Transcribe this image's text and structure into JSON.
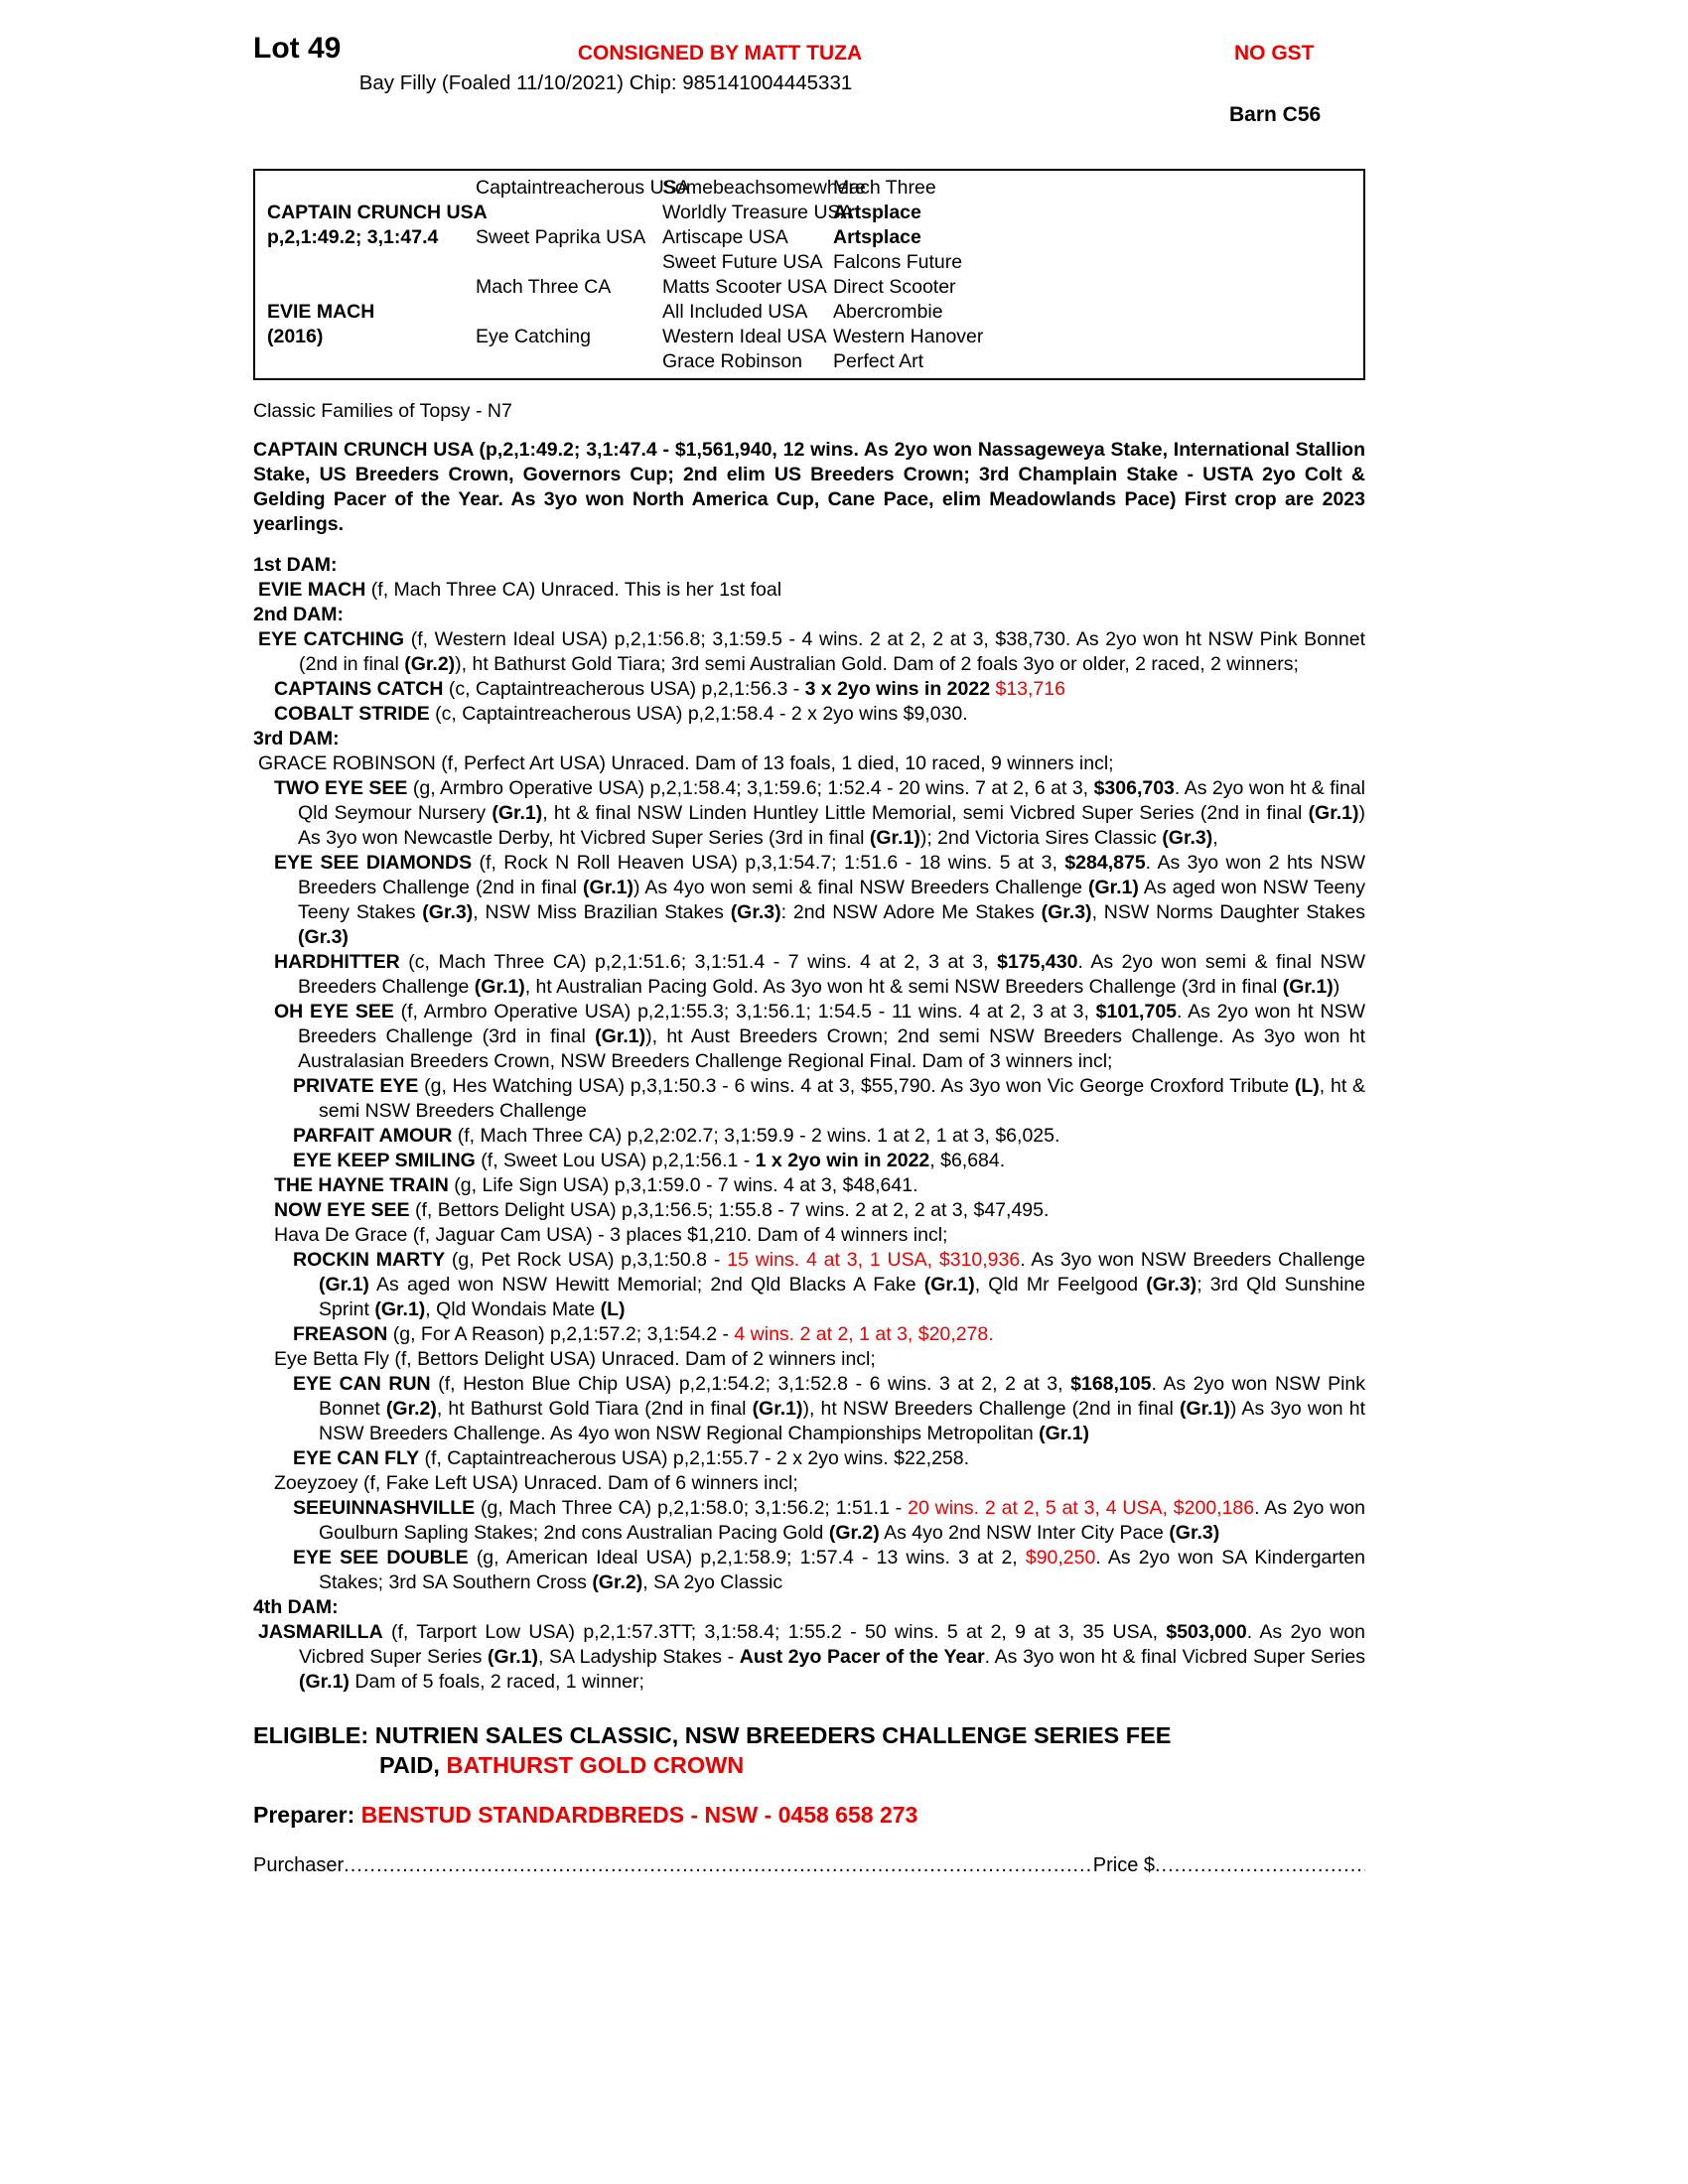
{
  "meta": {
    "accent_red": "#ee0000",
    "text_color": "#000000",
    "page_bg": "#ffffff"
  },
  "header": {
    "lot": "Lot 49",
    "consigned": "CONSIGNED BY MATT TUZA",
    "no_gst": "NO GST",
    "foal_info": "Bay Filly (Foaled 11/10/2021) Chip: 985141004445331",
    "barn": "Barn C56"
  },
  "pedigree": {
    "cells": [
      {
        "col": 1,
        "row": 2,
        "t": "CAPTAIN CRUNCH USA",
        "b": true
      },
      {
        "col": 1,
        "row": 3,
        "t": "p,2,1:49.2; 3,1:47.4",
        "b": true
      },
      {
        "col": 1,
        "row": 6,
        "t": "EVIE MACH",
        "b": true
      },
      {
        "col": 1,
        "row": 7,
        "t": "(2016)",
        "b": true
      },
      {
        "col": 2,
        "row": 1,
        "t": "Captaintreacherous USA"
      },
      {
        "col": 2,
        "row": 3,
        "t": "Sweet Paprika USA"
      },
      {
        "col": 2,
        "row": 5,
        "t": "Mach Three CA"
      },
      {
        "col": 2,
        "row": 7,
        "t": "Eye Catching"
      },
      {
        "col": 3,
        "row": 1,
        "t": "Somebeachsomewhere"
      },
      {
        "col": 3,
        "row": 2,
        "t": "Worldly Treasure USA"
      },
      {
        "col": 3,
        "row": 3,
        "t": "Artiscape USA"
      },
      {
        "col": 3,
        "row": 4,
        "t": "Sweet Future USA"
      },
      {
        "col": 3,
        "row": 5,
        "t": "Matts Scooter USA"
      },
      {
        "col": 3,
        "row": 6,
        "t": "All Included USA"
      },
      {
        "col": 3,
        "row": 7,
        "t": "Western Ideal USA"
      },
      {
        "col": 3,
        "row": 8,
        "t": "Grace Robinson"
      },
      {
        "col": 4,
        "row": 1,
        "t": "Mach Three"
      },
      {
        "col": 4,
        "row": 2,
        "t": "Artsplace",
        "b": true
      },
      {
        "col": 4,
        "row": 3,
        "t": "Artsplace",
        "b": true
      },
      {
        "col": 4,
        "row": 4,
        "t": "Falcons Future"
      },
      {
        "col": 4,
        "row": 5,
        "t": "Direct Scooter"
      },
      {
        "col": 4,
        "row": 6,
        "t": "Abercrombie"
      },
      {
        "col": 4,
        "row": 7,
        "t": "Western Hanover"
      },
      {
        "col": 4,
        "row": 8,
        "t": "Perfect Art"
      }
    ]
  },
  "body": [
    {
      "name": "family-line",
      "cls": "famline",
      "seg": [
        {
          "t": "Classic Families of Topsy - N7"
        }
      ]
    },
    {
      "name": "sire-paragraph",
      "cls": "sirepara justify",
      "seg": [
        {
          "t": "CAPTAIN CRUNCH USA (p,2,1:49.2; 3,1:47.4 - $1,561,940, 12 wins. As 2yo won Nassageweya Stake, International Stallion Stake, US Breeders Crown, Governors Cup; 2nd elim US Breeders Crown; 3rd Champlain Stake - USTA 2yo Colt & Gelding Pacer of the Year. As 3yo won North America Cup, Cane Pace, elim Meadowlands Pace) First crop are 2023 yearlings.",
          "b": true
        }
      ]
    },
    {
      "name": "dam1-label",
      "cls": "damlabel",
      "seg": [
        {
          "t": "1st DAM:",
          "b": true
        }
      ]
    },
    {
      "name": "entry-evie-mach",
      "cls": "lv0",
      "seg": [
        {
          "t": "EVIE MACH",
          "b": true
        },
        {
          "t": " (f, Mach Three CA) Unraced. This is her 1st foal"
        }
      ]
    },
    {
      "name": "dam2-label",
      "cls": "damlabel",
      "seg": [
        {
          "t": "2nd DAM:",
          "b": true
        }
      ]
    },
    {
      "name": "entry-eye-catching",
      "cls": "lv0 justify",
      "seg": [
        {
          "t": "EYE CATCHING",
          "b": true
        },
        {
          "t": " (f, Western Ideal USA) p,2,1:56.8; 3,1:59.5 - 4 wins. 2 at 2, 2 at 3, $38,730. As 2yo won ht NSW Pink Bonnet (2nd in final "
        },
        {
          "t": "(Gr.2)",
          "b": true
        },
        {
          "t": "), ht Bathurst Gold Tiara; 3rd semi Australian Gold. Dam of 2 foals 3yo or older, 2 raced, 2 winners;"
        }
      ]
    },
    {
      "name": "entry-captains-catch",
      "cls": "lv1",
      "seg": [
        {
          "t": "CAPTAINS CATCH",
          "b": true
        },
        {
          "t": " (c, Captaintreacherous USA) p,2,1:56.3 - "
        },
        {
          "t": "3 x 2yo wins in  2022",
          "b": true
        },
        {
          "t": " "
        },
        {
          "t": "$13,716",
          "r": true
        }
      ]
    },
    {
      "name": "entry-cobalt-stride",
      "cls": "lv1",
      "seg": [
        {
          "t": "COBALT STRIDE",
          "b": true
        },
        {
          "t": " (c, Captaintreacherous USA) p,2,1:58.4 - 2 x 2yo wins $9,030."
        }
      ]
    },
    {
      "name": "dam3-label",
      "cls": "damlabel",
      "seg": [
        {
          "t": "3rd DAM:",
          "b": true
        }
      ]
    },
    {
      "name": "entry-grace-robinson",
      "cls": "lv0",
      "seg": [
        {
          "t": "GRACE ROBINSON (f, Perfect Art USA) Unraced. Dam of 13 foals, 1 died, 10 raced, 9 winners incl;"
        }
      ]
    },
    {
      "name": "entry-two-eye-see",
      "cls": "lv1 justify",
      "seg": [
        {
          "t": "TWO EYE SEE",
          "b": true
        },
        {
          "t": " (g, Armbro Operative USA) p,2,1:58.4; 3,1:59.6; 1:52.4 - 20 wins. 7 at 2, 6 at 3, "
        },
        {
          "t": "$306,703",
          "b": true
        },
        {
          "t": ". As 2yo won ht & final Qld Seymour Nursery "
        },
        {
          "t": "(Gr.1)",
          "b": true
        },
        {
          "t": ", ht & final NSW Linden Huntley Little Memorial, semi Vicbred Super Series (2nd in final "
        },
        {
          "t": "(Gr.1)",
          "b": true
        },
        {
          "t": ") As 3yo won Newcastle Derby, ht Vicbred Super Series (3rd in final "
        },
        {
          "t": "(Gr.1)",
          "b": true
        },
        {
          "t": "); 2nd Victoria Sires Classic "
        },
        {
          "t": "(Gr.3)",
          "b": true
        },
        {
          "t": ","
        }
      ]
    },
    {
      "name": "entry-eye-see-diamonds",
      "cls": "lv1 justify",
      "seg": [
        {
          "t": "EYE SEE DIAMONDS",
          "b": true
        },
        {
          "t": " (f, Rock N Roll Heaven USA) p,3,1:54.7; 1:51.6 - 18 wins. 5 at 3, "
        },
        {
          "t": "$284,875",
          "b": true
        },
        {
          "t": ". As 3yo won 2 hts NSW Breeders Challenge (2nd in final "
        },
        {
          "t": "(Gr.1)",
          "b": true
        },
        {
          "t": ") As 4yo won semi & final NSW Breeders Challenge "
        },
        {
          "t": "(Gr.1)",
          "b": true
        },
        {
          "t": " As aged won NSW Teeny Teeny Stakes "
        },
        {
          "t": "(Gr.3)",
          "b": true
        },
        {
          "t": ", NSW Miss Brazilian Stakes "
        },
        {
          "t": "(Gr.3)",
          "b": true
        },
        {
          "t": ": 2nd NSW Adore Me Stakes "
        },
        {
          "t": "(Gr.3)",
          "b": true
        },
        {
          "t": ", NSW Norms Daughter Stakes "
        },
        {
          "t": "(Gr.3)",
          "b": true
        }
      ]
    },
    {
      "name": "entry-hardhitter",
      "cls": "lv1 justify",
      "seg": [
        {
          "t": "HARDHITTER",
          "b": true
        },
        {
          "t": " (c, Mach Three CA) p,2,1:51.6; 3,1:51.4 - 7 wins. 4 at 2, 3 at 3, "
        },
        {
          "t": "$175,430",
          "b": true
        },
        {
          "t": ". As 2yo won semi & final NSW Breeders Challenge "
        },
        {
          "t": "(Gr.1)",
          "b": true
        },
        {
          "t": ", ht Australian Pacing Gold. As 3yo won ht & semi NSW Breeders Challenge (3rd in final "
        },
        {
          "t": "(Gr.1)",
          "b": true
        },
        {
          "t": ")"
        }
      ]
    },
    {
      "name": "entry-oh-eye-see",
      "cls": "lv1 justify",
      "seg": [
        {
          "t": "OH EYE SEE",
          "b": true
        },
        {
          "t": " (f, Armbro Operative USA) p,2,1:55.3; 3,1:56.1; 1:54.5 - 11 wins. 4 at 2, 3 at 3, "
        },
        {
          "t": "$101,705",
          "b": true
        },
        {
          "t": ". As 2yo won ht NSW Breeders Challenge (3rd in final "
        },
        {
          "t": "(Gr.1)",
          "b": true
        },
        {
          "t": "), ht Aust Breeders Crown; 2nd semi NSW Breeders Challenge. As 3yo won ht Australasian Breeders Crown, NSW Breeders Challenge Regional Final. Dam of 3 winners incl;"
        }
      ]
    },
    {
      "name": "entry-private-eye",
      "cls": "lv2 justify",
      "seg": [
        {
          "t": "PRIVATE EYE",
          "b": true
        },
        {
          "t": " (g, Hes Watching USA) p,3,1:50.3 - 6 wins. 4 at 3, $55,790. As 3yo won Vic George Croxford Tribute "
        },
        {
          "t": "(L)",
          "b": true
        },
        {
          "t": ", ht & semi NSW Breeders Challenge"
        }
      ]
    },
    {
      "name": "entry-parfait-amour",
      "cls": "lv2",
      "seg": [
        {
          "t": "PARFAIT AMOUR",
          "b": true
        },
        {
          "t": " (f, Mach Three CA) p,2,2:02.7; 3,1:59.9 - 2 wins. 1 at 2, 1 at 3, $6,025."
        }
      ]
    },
    {
      "name": "entry-eye-keep-smiling",
      "cls": "lv2",
      "seg": [
        {
          "t": "EYE KEEP SMILING",
          "b": true
        },
        {
          "t": " (f, Sweet Lou USA) p,2,1:56.1 - "
        },
        {
          "t": "1 x 2yo win in 2022",
          "b": true
        },
        {
          "t": ", $6,684."
        }
      ]
    },
    {
      "name": "entry-the-hayne-train",
      "cls": "lv1",
      "seg": [
        {
          "t": "THE HAYNE TRAIN",
          "b": true
        },
        {
          "t": " (g, Life Sign USA) p,3,1:59.0 - 7 wins. 4 at 3, $48,641."
        }
      ]
    },
    {
      "name": "entry-now-eye-see",
      "cls": "lv1",
      "seg": [
        {
          "t": "NOW EYE SEE",
          "b": true
        },
        {
          "t": " (f, Bettors Delight USA) p,3,1:56.5; 1:55.8 - 7 wins. 2 at 2, 2 at 3, $47,495."
        }
      ]
    },
    {
      "name": "entry-hava-de-grace",
      "cls": "lv1",
      "seg": [
        {
          "t": "Hava De Grace (f, Jaguar Cam USA) - 3 places $1,210. Dam of 4 winners incl;"
        }
      ]
    },
    {
      "name": "entry-rockin-marty",
      "cls": "lv2 justify",
      "seg": [
        {
          "t": "ROCKIN MARTY",
          "b": true
        },
        {
          "t": " (g, Pet Rock USA) p,3,1:50.8 - "
        },
        {
          "t": "15 wins. 4 at 3, 1 USA, $310,936",
          "r": true
        },
        {
          "t": ". As 3yo won NSW Breeders Challenge "
        },
        {
          "t": "(Gr.1)",
          "b": true
        },
        {
          "t": " As aged won NSW Hewitt Memorial; 2nd Qld Blacks A Fake "
        },
        {
          "t": "(Gr.1)",
          "b": true
        },
        {
          "t": ", Qld Mr Feelgood "
        },
        {
          "t": "(Gr.3)",
          "b": true
        },
        {
          "t": "; 3rd Qld Sunshine Sprint "
        },
        {
          "t": "(Gr.1)",
          "b": true
        },
        {
          "t": ", Qld Wondais Mate "
        },
        {
          "t": "(L)",
          "b": true
        }
      ]
    },
    {
      "name": "entry-freason",
      "cls": "lv2",
      "seg": [
        {
          "t": "FREASON",
          "b": true
        },
        {
          "t": " (g, For A Reason) p,2,1:57.2; 3,1:54.2 - "
        },
        {
          "t": "4 wins. 2 at 2, 1 at 3, $20,278.",
          "r": true
        }
      ]
    },
    {
      "name": "entry-eye-betta-fly",
      "cls": "lv1",
      "seg": [
        {
          "t": "Eye Betta Fly (f, Bettors Delight USA) Unraced. Dam of 2 winners incl;"
        }
      ]
    },
    {
      "name": "entry-eye-can-run",
      "cls": "lv2 justify",
      "seg": [
        {
          "t": "EYE CAN RUN",
          "b": true
        },
        {
          "t": " (f, Heston Blue Chip USA) p,2,1:54.2; 3,1:52.8 - 6 wins. 3 at 2, 2 at 3, "
        },
        {
          "t": "$168,105",
          "b": true
        },
        {
          "t": ". As 2yo won NSW Pink Bonnet "
        },
        {
          "t": "(Gr.2)",
          "b": true
        },
        {
          "t": ", ht Bathurst Gold Tiara (2nd in final "
        },
        {
          "t": "(Gr.1)",
          "b": true
        },
        {
          "t": "), ht NSW Breeders Challenge (2nd in final "
        },
        {
          "t": "(Gr.1)",
          "b": true
        },
        {
          "t": ") As 3yo won ht NSW Breeders Challenge. As 4yo won NSW Regional Championships Metropolitan "
        },
        {
          "t": "(Gr.1)",
          "b": true
        }
      ]
    },
    {
      "name": "entry-eye-can-fly",
      "cls": "lv2",
      "seg": [
        {
          "t": "EYE CAN FLY",
          "b": true
        },
        {
          "t": " (f, Captaintreacherous USA) p,2,1:55.7 - 2 x 2yo wins. $22,258."
        }
      ]
    },
    {
      "name": "entry-zoeyzoey",
      "cls": "lv1",
      "seg": [
        {
          "t": "Zoeyzoey (f, Fake Left USA) Unraced. Dam of 6 winners incl;"
        }
      ]
    },
    {
      "name": "entry-seeuinnashville",
      "cls": "lv2 justify",
      "seg": [
        {
          "t": "SEEUINNASHVILLE",
          "b": true
        },
        {
          "t": " (g, Mach Three CA) p,2,1:58.0; 3,1:56.2; 1:51.1 - "
        },
        {
          "t": "20 wins. 2 at 2, 5 at 3, 4 USA, $200,186",
          "r": true
        },
        {
          "t": ". As 2yo won Goulburn Sapling Stakes; 2nd cons Australian Pacing Gold "
        },
        {
          "t": "(Gr.2)",
          "b": true
        },
        {
          "t": " As 4yo 2nd NSW Inter City Pace "
        },
        {
          "t": "(Gr.3)",
          "b": true
        }
      ]
    },
    {
      "name": "entry-eye-see-double",
      "cls": "lv2 justify",
      "seg": [
        {
          "t": "EYE SEE DOUBLE",
          "b": true
        },
        {
          "t": " (g, American Ideal USA) p,2,1:58.9; 1:57.4 - 13 wins. 3 at 2, "
        },
        {
          "t": "$90,250",
          "r": true
        },
        {
          "t": ". As 2yo won SA Kindergarten Stakes; 3rd SA Southern Cross "
        },
        {
          "t": "(Gr.2)",
          "b": true
        },
        {
          "t": ", SA 2yo Classic"
        }
      ]
    },
    {
      "name": "dam4-label",
      "cls": "damlabel",
      "seg": [
        {
          "t": "4th DAM:",
          "b": true
        }
      ]
    },
    {
      "name": "entry-jasmarilla",
      "cls": "lv0 justify",
      "seg": [
        {
          "t": "JASMARILLA",
          "b": true
        },
        {
          "t": " (f, Tarport Low USA) p,2,1:57.3TT; 3,1:58.4; 1:55.2 - 50 wins. 5 at 2, 9 at 3, 35 USA, "
        },
        {
          "t": "$503,000",
          "b": true
        },
        {
          "t": ". As 2yo won Vicbred Super Series "
        },
        {
          "t": "(Gr.1)",
          "b": true
        },
        {
          "t": ", SA Ladyship Stakes - "
        },
        {
          "t": "Aust 2yo Pacer of the Year",
          "b": true
        },
        {
          "t": ". As 3yo won ht & final Vicbred Super Series "
        },
        {
          "t": "(Gr.1)",
          "b": true
        },
        {
          "t": " Dam of 5 foals, 2 raced, 1 winner;"
        }
      ]
    }
  ],
  "eligible": {
    "lines": [
      {
        "name": "eligible-line-1",
        "cls": "line1",
        "seg": [
          {
            "t": "ELIGIBLE: NUTRIEN SALES CLASSIC, NSW BREEDERS CHALLENGE SERIES FEE",
            "b": true
          }
        ]
      },
      {
        "name": "eligible-line-2",
        "cls": "line2",
        "seg": [
          {
            "t": "PAID, ",
            "b": true
          },
          {
            "t": "BATHURST GOLD CROWN",
            "b": true,
            "r": true
          }
        ]
      }
    ]
  },
  "preparer": {
    "label": "Preparer: ",
    "value": "BENSTUD STANDARDBREDS - NSW - 0458 658 273"
  },
  "purchaser_line": {
    "label": "Purchaser",
    "dots_left": "................................................................................................................................................",
    "price_label": "Price $",
    "dots_right": "................................................."
  }
}
